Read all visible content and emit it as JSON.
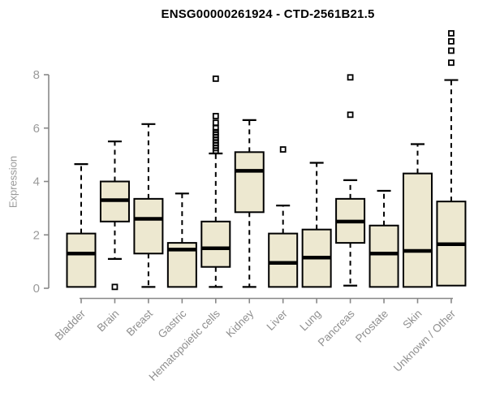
{
  "chart_data": {
    "type": "boxplot",
    "title": "ENSG00000261924 - CTD-2561B21.5",
    "ylabel": "Expression",
    "xlabel": "",
    "ylim": [
      0,
      8
    ],
    "yticks": [
      0,
      2,
      4,
      6,
      8
    ],
    "grid": false,
    "legend": false,
    "categories": [
      "Bladder",
      "Brain",
      "Breast",
      "Gastric",
      "Hematopoietic cells",
      "Kidney",
      "Liver",
      "Lung",
      "Pancreas",
      "Prostate",
      "Skin",
      "Unknown / Other"
    ],
    "boxes": [
      {
        "category": "Bladder",
        "whisker_low": 0.05,
        "q1": 0.05,
        "median": 1.3,
        "q3": 2.05,
        "whisker_high": 4.65,
        "outliers": []
      },
      {
        "category": "Brain",
        "whisker_low": 1.1,
        "q1": 2.5,
        "median": 3.3,
        "q3": 4.0,
        "whisker_high": 5.5,
        "outliers": [
          0.05
        ]
      },
      {
        "category": "Breast",
        "whisker_low": 0.05,
        "q1": 1.3,
        "median": 2.6,
        "q3": 3.35,
        "whisker_high": 6.15,
        "outliers": []
      },
      {
        "category": "Gastric",
        "whisker_low": 0.05,
        "q1": 0.05,
        "median": 1.45,
        "q3": 1.7,
        "whisker_high": 3.55,
        "outliers": []
      },
      {
        "category": "Hematopoietic cells",
        "whisker_low": 0.05,
        "q1": 0.8,
        "median": 1.5,
        "q3": 2.5,
        "whisker_high": 5.05,
        "outliers": [
          7.85,
          6.45,
          6.2,
          6.0,
          5.85,
          5.75,
          5.65,
          5.55,
          5.45,
          5.35,
          5.25,
          5.15
        ]
      },
      {
        "category": "Kidney",
        "whisker_low": 0.05,
        "q1": 2.85,
        "median": 4.4,
        "q3": 5.1,
        "whisker_high": 6.3,
        "outliers": []
      },
      {
        "category": "Liver",
        "whisker_low": 0.05,
        "q1": 0.05,
        "median": 0.95,
        "q3": 2.05,
        "whisker_high": 3.1,
        "outliers": [
          5.2
        ]
      },
      {
        "category": "Lung",
        "whisker_low": 0.05,
        "q1": 0.05,
        "median": 1.15,
        "q3": 2.2,
        "whisker_high": 4.7,
        "outliers": []
      },
      {
        "category": "Pancreas",
        "whisker_low": 0.1,
        "q1": 1.7,
        "median": 2.5,
        "q3": 3.35,
        "whisker_high": 4.05,
        "outliers": [
          7.9,
          6.5
        ]
      },
      {
        "category": "Prostate",
        "whisker_low": 0.05,
        "q1": 0.05,
        "median": 1.3,
        "q3": 2.35,
        "whisker_high": 3.65,
        "outliers": []
      },
      {
        "category": "Skin",
        "whisker_low": 0.05,
        "q1": 0.05,
        "median": 1.4,
        "q3": 4.3,
        "whisker_high": 5.4,
        "outliers": []
      },
      {
        "category": "Unknown / Other",
        "whisker_low": 0.1,
        "q1": 0.1,
        "median": 1.65,
        "q3": 3.25,
        "whisker_high": 7.8,
        "outliers": [
          9.55,
          9.25,
          8.9,
          8.45
        ]
      }
    ],
    "colors": {
      "box_fill": "#ede8d0",
      "box_stroke": "#000000",
      "median": "#000000",
      "whisker": "#000000",
      "axis": "#888888",
      "tick_label": "#9a9a9a",
      "category_label": "#8f8f8f",
      "title": "#000000"
    }
  }
}
